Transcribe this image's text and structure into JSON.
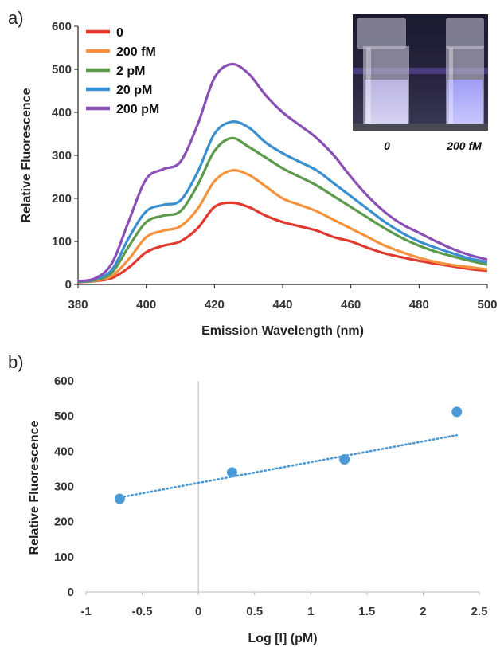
{
  "panels": {
    "a_label": "a)",
    "b_label": "b)"
  },
  "chart_data": [
    {
      "type": "line",
      "xlabel": "Emission Wavelength (nm)",
      "ylabel": "Relative Fluorescence",
      "xlim": [
        380,
        500
      ],
      "ylim": [
        0,
        600
      ],
      "xticks": [
        "380",
        "400",
        "420",
        "440",
        "460",
        "480",
        "500"
      ],
      "yticks": [
        "0",
        "100",
        "200",
        "300",
        "400",
        "500",
        "600"
      ],
      "grid": false,
      "legend_position": "top-left",
      "x": [
        380,
        385,
        390,
        395,
        400,
        405,
        410,
        415,
        420,
        425,
        430,
        435,
        440,
        445,
        450,
        455,
        460,
        465,
        470,
        475,
        480,
        485,
        490,
        495,
        500
      ],
      "series": [
        {
          "name": "0",
          "color": "#e03a2f",
          "values": [
            5,
            8,
            15,
            40,
            75,
            90,
            100,
            130,
            180,
            190,
            180,
            160,
            145,
            135,
            125,
            110,
            100,
            85,
            72,
            63,
            55,
            48,
            42,
            36,
            32
          ]
        },
        {
          "name": "200 fM",
          "color": "#f5923e",
          "values": [
            5,
            9,
            20,
            60,
            110,
            125,
            135,
            175,
            240,
            265,
            255,
            228,
            200,
            185,
            170,
            150,
            130,
            110,
            90,
            75,
            62,
            52,
            45,
            40,
            35
          ]
        },
        {
          "name": "2 pM",
          "color": "#5a9a4a",
          "values": [
            6,
            10,
            28,
            90,
            145,
            160,
            170,
            230,
            310,
            340,
            320,
            295,
            270,
            250,
            230,
            205,
            180,
            155,
            130,
            108,
            90,
            76,
            65,
            55,
            46
          ]
        },
        {
          "name": "20 pM",
          "color": "#3a8fd0",
          "values": [
            7,
            12,
            35,
            110,
            170,
            185,
            195,
            260,
            350,
            378,
            365,
            330,
            305,
            285,
            265,
            235,
            205,
            175,
            145,
            120,
            100,
            85,
            72,
            60,
            52
          ]
        },
        {
          "name": "200 pM",
          "color": "#8a4fb5",
          "values": [
            8,
            14,
            50,
            150,
            245,
            268,
            285,
            370,
            480,
            512,
            490,
            440,
            400,
            370,
            340,
            300,
            250,
            205,
            168,
            140,
            120,
            100,
            82,
            68,
            58
          ]
        }
      ],
      "inset": {
        "captions": [
          "0",
          "200 fM"
        ]
      }
    },
    {
      "type": "scatter",
      "xlabel": "Log [I] (pM)",
      "ylabel": "Relative Fluorescence",
      "xlim": [
        -1,
        2.5
      ],
      "ylim": [
        0,
        600
      ],
      "xticks": [
        "-1",
        "-0.5",
        "0",
        "0.5",
        "1",
        "1.5",
        "2",
        "2.5"
      ],
      "yticks": [
        "0",
        "100",
        "200",
        "300",
        "400",
        "500",
        "600"
      ],
      "grid": false,
      "marker_color": "#4a9ad8",
      "points": {
        "x": [
          -0.7,
          0.3,
          1.3,
          2.3
        ],
        "y": [
          265,
          340,
          377,
          512
        ]
      },
      "trendline": {
        "style": "dotted",
        "slope": 59,
        "intercept": 310,
        "x_range": [
          -0.7,
          2.3
        ]
      }
    }
  ]
}
